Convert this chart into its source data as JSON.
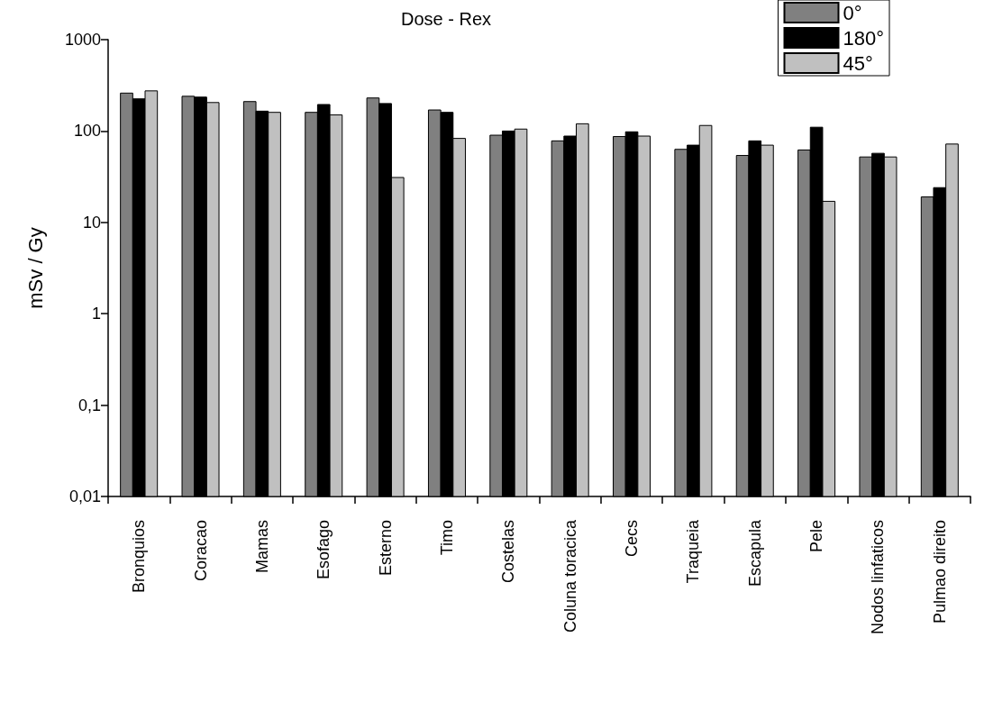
{
  "chart_data": {
    "type": "bar",
    "title": "Dose - Rex",
    "ylabel": "mSv / Gy",
    "categories": [
      "Bronquios",
      "Coracao",
      "Mamas",
      "Esofago",
      "Esterno",
      "Timo",
      "Costelas",
      "Coluna toracica",
      "Cecs",
      "Traqueia",
      "Escapula",
      "Pele",
      "Nodos linfaticos",
      "Pulmao direito"
    ],
    "series": [
      {
        "name": "0°",
        "color": "#808080",
        "values": [
          260,
          240,
          210,
          160,
          230,
          170,
          90,
          78,
          87,
          63,
          54,
          62,
          52,
          19
        ]
      },
      {
        "name": "180°",
        "color": "#000000",
        "values": [
          225,
          235,
          165,
          195,
          200,
          160,
          100,
          88,
          98,
          70,
          78,
          110,
          57,
          24
        ]
      },
      {
        "name": "45°",
        "color": "#c0c0c0",
        "values": [
          275,
          205,
          160,
          150,
          31,
          83,
          105,
          120,
          88,
          115,
          70,
          17,
          52,
          72
        ]
      }
    ],
    "log": "y",
    "ylim": [
      0.01,
      1000
    ],
    "yticks": [
      {
        "value": 0.01,
        "label": "0,01"
      },
      {
        "value": 0.1,
        "label": "0,1"
      },
      1,
      10,
      100,
      1000
    ],
    "grid": false,
    "legend": "top right"
  }
}
